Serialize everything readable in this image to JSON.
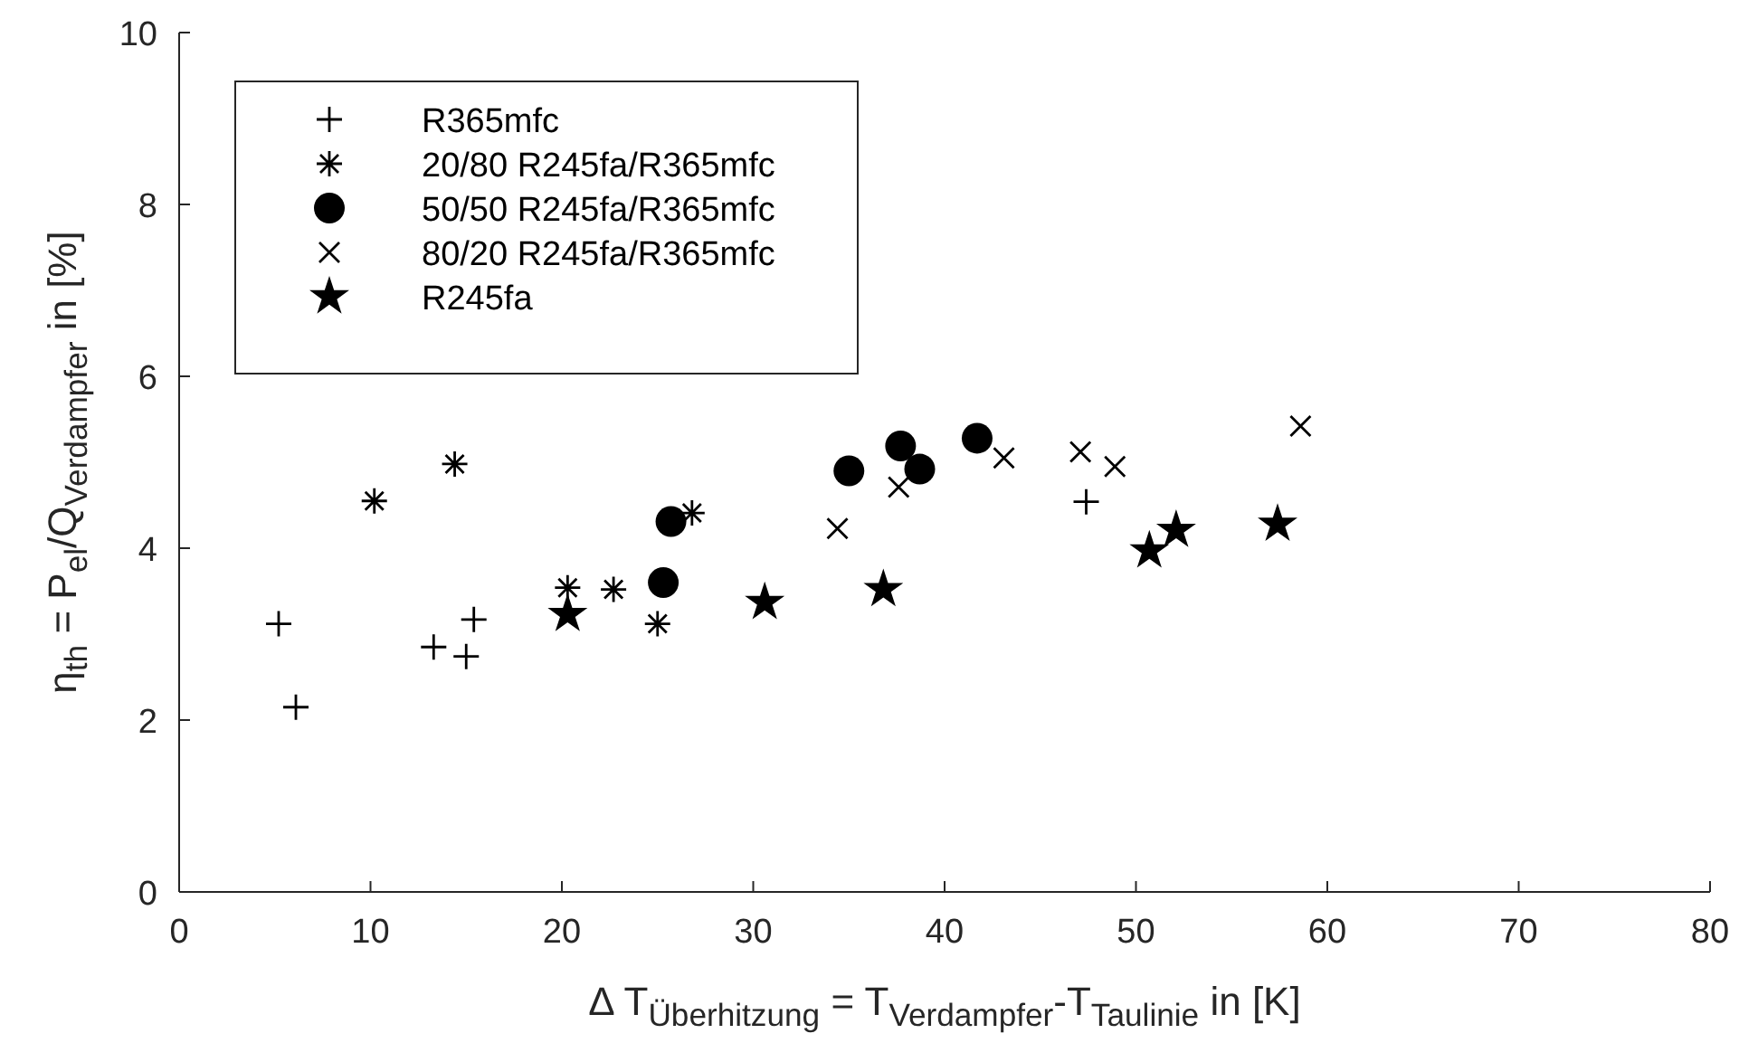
{
  "chart_data": {
    "type": "scatter",
    "xlabel": "Δ T$_{Überhitzung}$ = T$_{Verdampfer}$-T$_{Taulinie}$ in [K]",
    "ylabel": "η$_{th}$ = P$_{el}$/Q$_{Verdampfer}$ in [%]",
    "xlim": [
      0,
      80
    ],
    "xticks": [
      0,
      10,
      20,
      30,
      40,
      50,
      60,
      70,
      80
    ],
    "ylim": [
      0,
      10
    ],
    "yticks": [
      0,
      2,
      4,
      6,
      8,
      10
    ],
    "grid": false,
    "legend": "top left",
    "series": [
      {
        "name": "R365mfc",
        "color": "#000000",
        "marker": "plus",
        "x": [
          5.2,
          6.1,
          13.3,
          15.0,
          15.4,
          47.4
        ],
        "values": [
          3.12,
          2.15,
          2.85,
          2.74,
          3.17,
          4.54
        ]
      },
      {
        "name": "20/80 R245fa/R365mfc",
        "color": "#000000",
        "marker": "cross",
        "x": [
          10.2,
          14.4,
          20.3,
          22.7,
          25.0,
          26.8
        ],
        "values": [
          4.55,
          4.98,
          3.54,
          3.52,
          3.12,
          4.41
        ]
      },
      {
        "name": "50/50 R245fa/R365mfc",
        "color": "#000000",
        "marker": "circle",
        "x": [
          25.3,
          25.7,
          35.0,
          37.7,
          38.7,
          41.7
        ],
        "values": [
          3.6,
          4.31,
          4.9,
          5.19,
          4.92,
          5.28
        ]
      },
      {
        "name": "80/20 R245fa/R365mfc",
        "color": "#000000",
        "marker": "x",
        "x": [
          34.4,
          37.6,
          43.1,
          47.1,
          48.9,
          58.6
        ],
        "values": [
          4.23,
          4.71,
          5.05,
          5.12,
          4.95,
          5.42
        ]
      },
      {
        "name": "R245fa",
        "color": "#000000",
        "marker": "star",
        "x": [
          20.3,
          30.6,
          36.8,
          50.7,
          52.1,
          57.4
        ],
        "values": [
          3.23,
          3.37,
          3.52,
          3.97,
          4.21,
          4.28
        ]
      }
    ]
  }
}
